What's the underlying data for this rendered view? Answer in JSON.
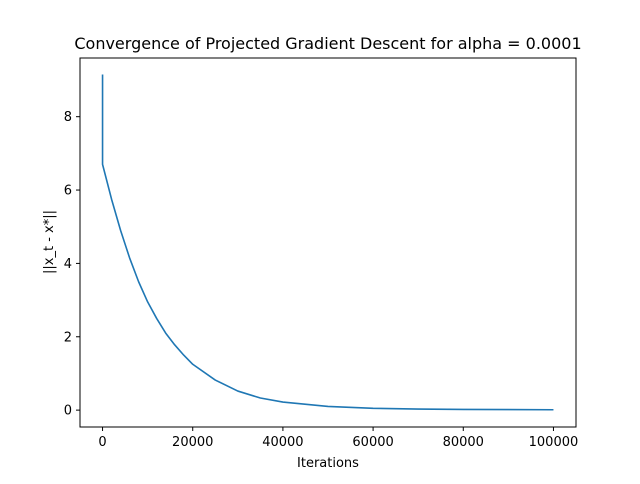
{
  "chart_data": {
    "type": "line",
    "title": "Convergence of Projected Gradient Descent for alpha = 0.0001",
    "xlabel": "Iterations",
    "ylabel": "||x_t - x*||",
    "xlim": [
      -5000,
      105000
    ],
    "ylim": [
      -0.46,
      9.6
    ],
    "x_ticks": [
      0,
      20000,
      40000,
      60000,
      80000,
      100000
    ],
    "x_tick_labels": [
      "0",
      "20000",
      "40000",
      "60000",
      "80000",
      "100000"
    ],
    "y_ticks": [
      0,
      2,
      4,
      6,
      8
    ],
    "y_tick_labels": [
      "0",
      "2",
      "4",
      "6",
      "8"
    ],
    "grid": false,
    "legend": "none",
    "series": [
      {
        "color": "#1f77b4",
        "x": [
          0,
          1,
          2000,
          4000,
          6000,
          8000,
          10000,
          12000,
          14000,
          16000,
          18000,
          20000,
          25000,
          30000,
          35000,
          40000,
          50000,
          60000,
          70000,
          80000,
          90000,
          100000
        ],
        "y": [
          9.15,
          6.7,
          5.75,
          4.9,
          4.15,
          3.5,
          2.95,
          2.5,
          2.1,
          1.78,
          1.5,
          1.25,
          0.82,
          0.52,
          0.33,
          0.22,
          0.1,
          0.05,
          0.03,
          0.02,
          0.015,
          0.01
        ]
      }
    ]
  }
}
